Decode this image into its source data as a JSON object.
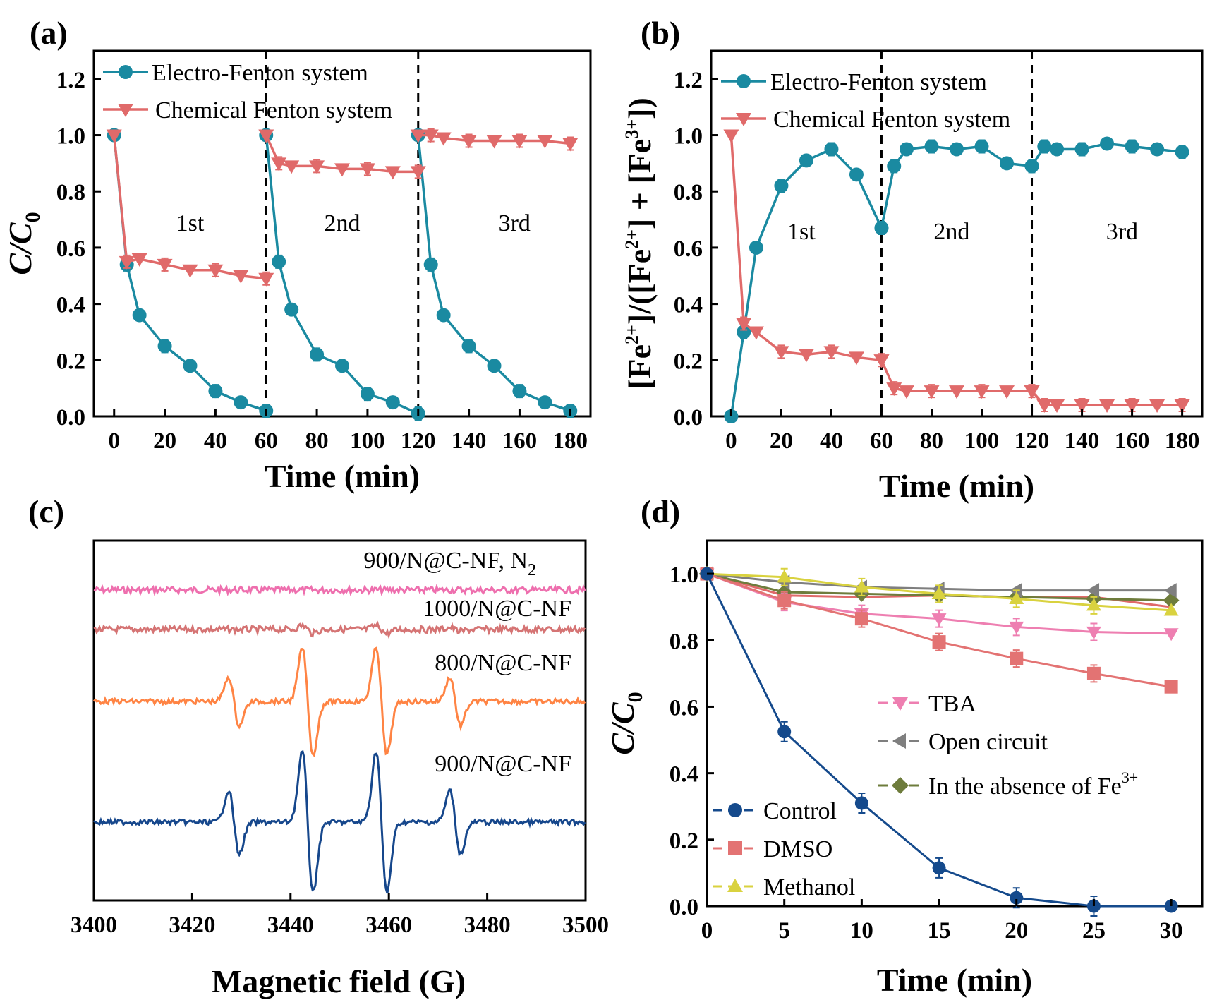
{
  "colors": {
    "electro": "#1a8aa1",
    "chemical": "#e06a6a",
    "control": "#154a8c",
    "dmso": "#e37373",
    "methanol": "#d9d23f",
    "tba": "#ee7fb1",
    "open_circuit": "#7f7f7f",
    "absence_fe": "#6e7c3c",
    "epr_n2": "#ee6fae",
    "epr_1000": "#d57474",
    "epr_800": "#ff8444",
    "epr_900": "#16478c"
  },
  "chart_data": [
    {
      "panel": "(a)",
      "type": "line",
      "xlabel": "Time (min)",
      "ylabel": "C/C",
      "ylabel_sub": "0",
      "xlim": [
        -8,
        188
      ],
      "ylim": [
        0,
        1.3
      ],
      "xticks": [
        0,
        20,
        40,
        60,
        80,
        100,
        120,
        140,
        160,
        180
      ],
      "yticks": [
        0.0,
        0.2,
        0.4,
        0.6,
        0.8,
        1.0,
        1.2
      ],
      "ytick_labels": [
        "0.0",
        "0.2",
        "0.4",
        "0.6",
        "0.8",
        "1.0",
        "1.2"
      ],
      "legend_position": "top-left",
      "dividers": [
        60,
        120
      ],
      "annotations": [
        {
          "text": "1st",
          "x": 30,
          "y": 0.69
        },
        {
          "text": "2nd",
          "x": 90,
          "y": 0.69
        },
        {
          "text": "3rd",
          "x": 158,
          "y": 0.69
        }
      ],
      "series": [
        {
          "name": "Electro-Fenton system",
          "color_key": "electro",
          "marker": "circle",
          "segments": [
            {
              "x": [
                0,
                5,
                10,
                20,
                30,
                40,
                50,
                60
              ],
              "y": [
                1.0,
                0.54,
                0.36,
                0.25,
                0.18,
                0.09,
                0.05,
                0.02
              ]
            },
            {
              "x": [
                60,
                65,
                70,
                80,
                90,
                100,
                110,
                120
              ],
              "y": [
                1.0,
                0.55,
                0.38,
                0.22,
                0.18,
                0.08,
                0.05,
                0.01
              ]
            },
            {
              "x": [
                120,
                125,
                130,
                140,
                150,
                160,
                170,
                180
              ],
              "y": [
                1.0,
                0.54,
                0.36,
                0.25,
                0.18,
                0.09,
                0.05,
                0.02
              ]
            }
          ]
        },
        {
          "name": "Chemical Fenton system",
          "color_key": "chemical",
          "marker": "triangle-down",
          "segments": [
            {
              "x": [
                0,
                5,
                10,
                20,
                30,
                40,
                50,
                60
              ],
              "y": [
                1.0,
                0.55,
                0.56,
                0.54,
                0.52,
                0.52,
                0.5,
                0.49
              ]
            },
            {
              "x": [
                60,
                65,
                70,
                80,
                90,
                100,
                110,
                120
              ],
              "y": [
                1.0,
                0.9,
                0.89,
                0.89,
                0.88,
                0.88,
                0.87,
                0.87
              ]
            },
            {
              "x": [
                120,
                125,
                130,
                140,
                150,
                160,
                170,
                180
              ],
              "y": [
                1.0,
                1.0,
                0.99,
                0.98,
                0.98,
                0.98,
                0.98,
                0.97
              ]
            }
          ]
        }
      ]
    },
    {
      "panel": "(b)",
      "type": "line",
      "xlabel": "Time (min)",
      "ylabel": "[Fe2+]/([Fe2+] + [Fe3+])",
      "xlim": [
        -8,
        188
      ],
      "ylim": [
        0,
        1.3
      ],
      "xticks": [
        0,
        20,
        40,
        60,
        80,
        100,
        120,
        140,
        160,
        180
      ],
      "yticks": [
        0.0,
        0.2,
        0.4,
        0.6,
        0.8,
        1.0,
        1.2
      ],
      "ytick_labels": [
        "0.0",
        "0.2",
        "0.4",
        "0.6",
        "0.8",
        "1.0",
        "1.2"
      ],
      "legend_position": "top-left",
      "dividers": [
        60,
        120
      ],
      "annotations": [
        {
          "text": "1st",
          "x": 28,
          "y": 0.66
        },
        {
          "text": "2nd",
          "x": 88,
          "y": 0.66
        },
        {
          "text": "3rd",
          "x": 156,
          "y": 0.66
        }
      ],
      "series": [
        {
          "name": "Electro-Fenton system",
          "color_key": "electro",
          "marker": "circle",
          "segments": [
            {
              "x": [
                0,
                5,
                10,
                20,
                30,
                40,
                50,
                60
              ],
              "y": [
                0.0,
                0.3,
                0.6,
                0.82,
                0.91,
                0.95,
                0.86,
                0.67
              ]
            },
            {
              "x": [
                60,
                65,
                70,
                80,
                90,
                100,
                110,
                120
              ],
              "y": [
                0.67,
                0.89,
                0.95,
                0.96,
                0.95,
                0.96,
                0.9,
                0.89
              ]
            },
            {
              "x": [
                120,
                125,
                130,
                140,
                150,
                160,
                170,
                180
              ],
              "y": [
                0.89,
                0.96,
                0.95,
                0.95,
                0.97,
                0.96,
                0.95,
                0.94
              ]
            }
          ]
        },
        {
          "name": "Chemical Fenton system",
          "color_key": "chemical",
          "marker": "triangle-down",
          "segments": [
            {
              "x": [
                0,
                5,
                10,
                20,
                30,
                40,
                50,
                60
              ],
              "y": [
                1.0,
                0.33,
                0.3,
                0.23,
                0.22,
                0.23,
                0.21,
                0.2
              ]
            },
            {
              "x": [
                60,
                65,
                70,
                80,
                90,
                100,
                110,
                120
              ],
              "y": [
                0.2,
                0.1,
                0.09,
                0.09,
                0.09,
                0.09,
                0.09,
                0.09
              ]
            },
            {
              "x": [
                120,
                125,
                130,
                140,
                150,
                160,
                170,
                180
              ],
              "y": [
                0.09,
                0.04,
                0.04,
                0.04,
                0.04,
                0.04,
                0.04,
                0.04
              ]
            }
          ]
        }
      ]
    },
    {
      "panel": "(c)",
      "type": "line",
      "xlabel": "Magnetic field (G)",
      "xlim": [
        3400,
        3500
      ],
      "xticks": [
        3400,
        3420,
        3440,
        3460,
        3480,
        3500
      ],
      "hyperfine_lines_G": [
        3428.5,
        3443.5,
        3458.5,
        3473.5
      ],
      "series": [
        {
          "name": "900/N@C-NF, N",
          "name_sub": "2",
          "color_key": "epr_n2",
          "relative_intensity": [
            0.0,
            0.0,
            0.0,
            0.0
          ]
        },
        {
          "name": "1000/N@C-NF",
          "color_key": "epr_1000",
          "relative_intensity": [
            0.0,
            0.12,
            0.12,
            0.06
          ]
        },
        {
          "name": "800/N@C-NF",
          "color_key": "epr_800",
          "relative_intensity": [
            0.45,
            1.0,
            1.0,
            0.45
          ]
        },
        {
          "name": "900/N@C-NF",
          "color_key": "epr_900",
          "relative_intensity": [
            0.45,
            1.0,
            1.0,
            0.45
          ]
        }
      ]
    },
    {
      "panel": "(d)",
      "type": "line",
      "xlabel": "Time (min)",
      "ylabel": "C/C",
      "ylabel_sub": "0",
      "xlim": [
        0,
        32
      ],
      "ylim": [
        0,
        1.1
      ],
      "xticks": [
        0,
        5,
        10,
        15,
        20,
        25,
        30
      ],
      "yticks": [
        0.0,
        0.2,
        0.4,
        0.6,
        0.8,
        1.0
      ],
      "ytick_labels": [
        "0.0",
        "0.2",
        "0.4",
        "0.6",
        "0.8",
        "1.0"
      ],
      "x": [
        0,
        5,
        10,
        15,
        20,
        25,
        30
      ],
      "series": [
        {
          "name": "Control",
          "color_key": "control",
          "marker": "circle",
          "y": [
            1.0,
            0.525,
            0.31,
            0.115,
            0.025,
            0.0,
            0.0
          ]
        },
        {
          "name": "DMSO",
          "color_key": "dmso",
          "marker": "square",
          "y": [
            1.0,
            0.92,
            0.865,
            0.795,
            0.745,
            0.7,
            0.66
          ]
        },
        {
          "name": "Methanol",
          "color_key": "methanol",
          "marker": "triangle-up",
          "y": [
            1.0,
            0.99,
            0.96,
            0.94,
            0.925,
            0.905,
            0.89
          ]
        },
        {
          "name": "TBA",
          "color_key": "tba",
          "marker": "triangle-down",
          "y": [
            1.0,
            0.915,
            0.88,
            0.865,
            0.84,
            0.825,
            0.82
          ]
        },
        {
          "name": "Open circuit",
          "color_key": "open_circuit",
          "marker": "triangle-left",
          "y": [
            1.0,
            0.975,
            0.96,
            0.955,
            0.95,
            0.95,
            0.95
          ]
        },
        {
          "name": "In the absence of Fe",
          "name_sup": "3+",
          "color_key": "absence_fe",
          "marker": "diamond",
          "y": [
            1.0,
            0.945,
            0.94,
            0.935,
            0.93,
            0.925,
            0.92
          ]
        },
        {
          "name": "",
          "color_key": "chemical",
          "marker": "none",
          "y": [
            1.0,
            0.935,
            0.93,
            0.935,
            0.93,
            0.93,
            0.9
          ]
        }
      ]
    }
  ]
}
